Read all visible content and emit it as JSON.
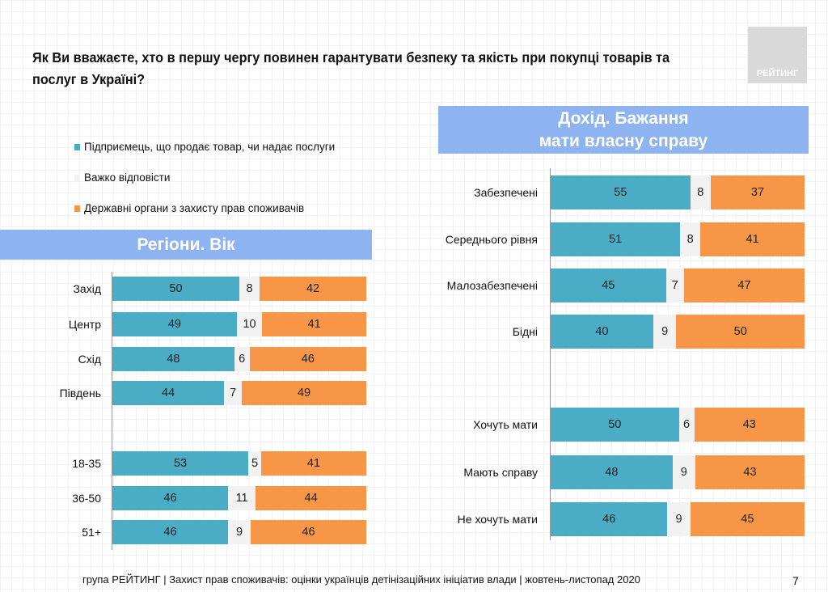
{
  "title": "Як Ви вважаєте, хто в першу чергу повинен гарантувати безпеку та якість при покупці товарів та послуг в Україні?",
  "logo_text": "РЕЙТИНГ",
  "colors": {
    "business": "#4bacc6",
    "hard": "#f2f2f2",
    "state": "#f79646",
    "header": "#8db3f1"
  },
  "legend": [
    {
      "label": "Підприємець, що продає товар, чи надає послуги",
      "color": "#4bacc6"
    },
    {
      "label": "Важко відповісти",
      "color": "#f2f2f2"
    },
    {
      "label": "Державні органи з захисту прав споживачів",
      "color": "#f79646"
    }
  ],
  "chart_data": [
    {
      "type": "bar",
      "stacked": "100%",
      "orientation": "horizontal",
      "title": "Регіони. Вік",
      "categories": [
        "Захід",
        "Центр",
        "Схід",
        "Південь",
        "18-35",
        "36-50",
        "51+"
      ],
      "series": [
        {
          "name": "Підприємець, що продає товар, чи надає послуги",
          "values": [
            50,
            49,
            48,
            44,
            53,
            46,
            46
          ]
        },
        {
          "name": "Важко відповісти",
          "values": [
            8,
            10,
            6,
            7,
            5,
            11,
            9
          ]
        },
        {
          "name": "Державні органи з захисту прав споживачів",
          "values": [
            42,
            41,
            46,
            49,
            41,
            44,
            46
          ]
        }
      ]
    },
    {
      "type": "bar",
      "stacked": "100%",
      "orientation": "horizontal",
      "title": "Дохід. Бажання мати власну справу",
      "title_lines": [
        "Дохід. Бажання",
        "мати власну справу"
      ],
      "categories": [
        "Забезпечені",
        "Середнього рівня",
        "Малозабезпечені",
        "Бідні",
        "Хочуть мати",
        "Мають справу",
        "Не хочуть мати"
      ],
      "series": [
        {
          "name": "Підприємець, що продає товар, чи надає послуги",
          "values": [
            55,
            51,
            45,
            40,
            50,
            48,
            46
          ]
        },
        {
          "name": "Важко відповісти",
          "values": [
            8,
            8,
            7,
            9,
            6,
            9,
            9
          ]
        },
        {
          "name": "Державні органи з захисту прав споживачів",
          "values": [
            37,
            41,
            47,
            50,
            43,
            43,
            45
          ]
        }
      ]
    }
  ],
  "footer": "група РЕЙТИНГ  | Захист прав споживачів: оцінки українців детінізаційних ініціатив влади  | жовтень-листопад 2020",
  "page_number": "7"
}
